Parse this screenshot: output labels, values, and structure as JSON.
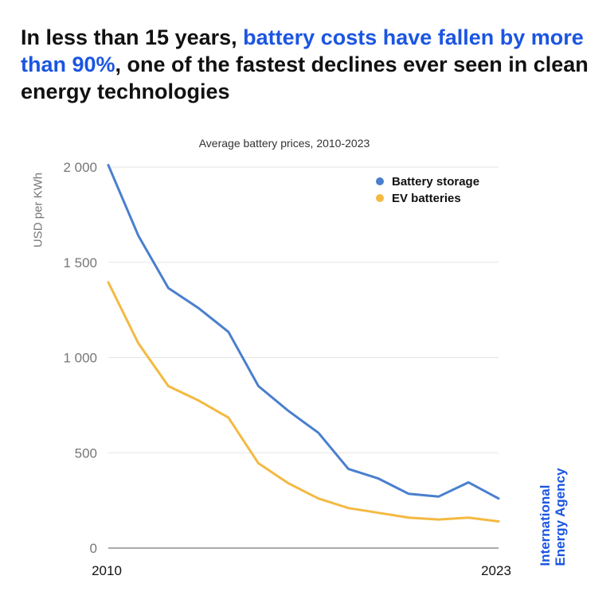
{
  "headline": {
    "part1": "In less than 15 years, ",
    "accent": "battery costs have fallen by more than 90%",
    "part2": ", one of the fastest declines ever seen in clean energy technologies"
  },
  "logo": {
    "line1": "International",
    "line2": "Energy Agency"
  },
  "colors": {
    "accent": "#1b55e2",
    "battery_storage": "#4a7fce",
    "ev_batteries": "#f4b942",
    "grid": "#e6e6e6"
  },
  "chart_data": {
    "type": "line",
    "title": "Average battery prices, 2010-2023",
    "xlabel": "",
    "ylabel": "USD per KWh",
    "x": [
      2010,
      2011,
      2012,
      2013,
      2014,
      2015,
      2016,
      2017,
      2018,
      2019,
      2020,
      2021,
      2022,
      2023
    ],
    "xlim": [
      2010,
      2023
    ],
    "ylim": [
      0,
      2000
    ],
    "yticks": [
      0,
      500,
      1000,
      1500,
      2000
    ],
    "ytick_labels": [
      "0",
      "500",
      "1 000",
      "1 500",
      "2 000"
    ],
    "xtick_labels": [
      "2010",
      "2023"
    ],
    "grid": true,
    "legend_position": "top-right",
    "series": [
      {
        "name": "Battery storage",
        "color": "#4a7fce",
        "values": [
          2010,
          1640,
          1365,
          1260,
          1135,
          850,
          720,
          605,
          415,
          365,
          285,
          270,
          345,
          260
        ]
      },
      {
        "name": "EV batteries",
        "color": "#f4b942",
        "values": [
          1395,
          1075,
          850,
          775,
          685,
          445,
          340,
          260,
          210,
          185,
          160,
          150,
          160,
          140
        ]
      }
    ]
  }
}
